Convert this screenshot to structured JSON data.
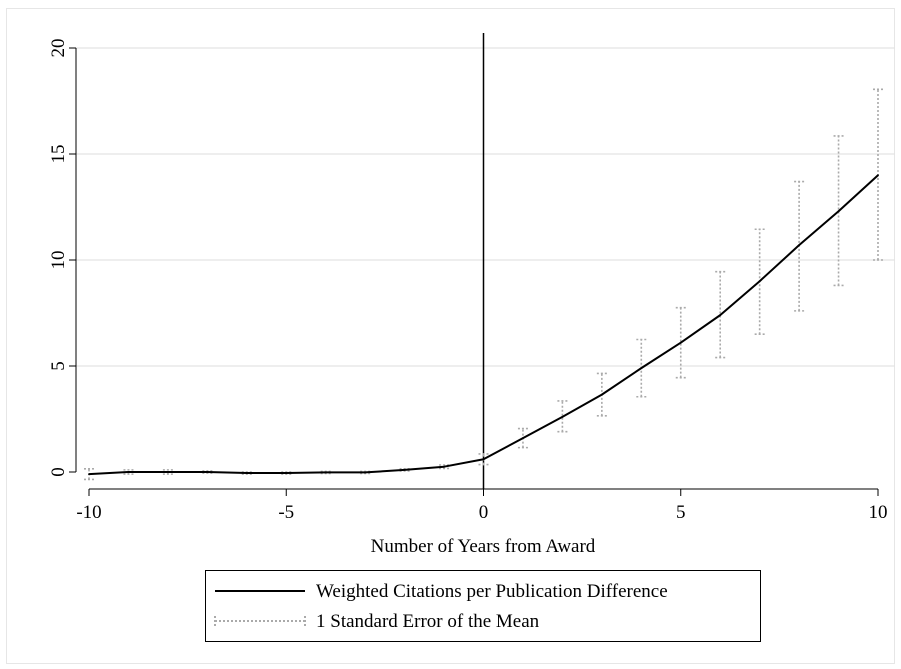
{
  "chart_data": {
    "type": "line",
    "title": "",
    "xlabel": "Number of Years from Award",
    "ylabel": "",
    "xlim": [
      -10,
      10
    ],
    "ylim": [
      0,
      20
    ],
    "xticks": [
      -10,
      -5,
      0,
      5,
      10
    ],
    "yticks": [
      0,
      5,
      10,
      15,
      20
    ],
    "grid": true,
    "reference_line_x": 0,
    "legend_position": "bottom",
    "x": [
      -10,
      -9,
      -8,
      -7,
      -6,
      -5,
      -4,
      -3,
      -2,
      -1,
      0,
      1,
      2,
      3,
      4,
      5,
      6,
      7,
      8,
      9,
      10
    ],
    "series": [
      {
        "name": "Weighted Citations per Publication Difference",
        "style": "solid",
        "color": "#000000",
        "values": [
          -0.1,
          0.0,
          0.0,
          0.0,
          -0.05,
          -0.05,
          -0.02,
          -0.02,
          0.1,
          0.25,
          0.6,
          1.6,
          2.6,
          3.65,
          4.9,
          6.1,
          7.4,
          9.0,
          10.7,
          12.3,
          14.0
        ]
      },
      {
        "name": "1 Standard Error of the Mean",
        "style": "dotted",
        "color": "#aaaaaa",
        "type": "errorbar",
        "lower": [
          -0.35,
          -0.1,
          -0.1,
          -0.05,
          -0.1,
          -0.1,
          -0.07,
          -0.07,
          0.05,
          0.17,
          0.35,
          1.15,
          1.9,
          2.65,
          3.55,
          4.45,
          5.4,
          6.5,
          7.6,
          8.8,
          10.0
        ],
        "upper": [
          0.15,
          0.1,
          0.1,
          0.05,
          0.0,
          0.0,
          0.03,
          0.03,
          0.15,
          0.33,
          0.85,
          2.05,
          3.35,
          4.65,
          6.25,
          7.75,
          9.45,
          11.45,
          13.7,
          15.85,
          18.05
        ]
      }
    ]
  }
}
